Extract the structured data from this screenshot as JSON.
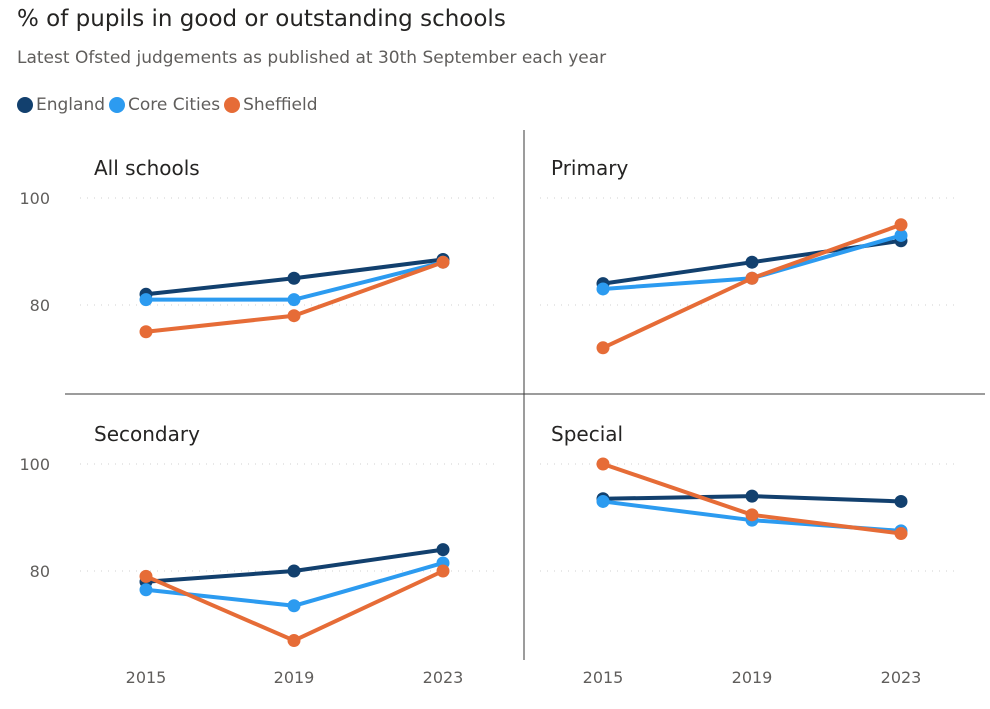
{
  "title": "% of pupils in good or outstanding schools",
  "subtitle": "Latest Ofsted judgements as published at 30th September each year",
  "legend": [
    {
      "name": "England",
      "color": "#12406e"
    },
    {
      "name": "Core Cities",
      "color": "#2c9bf0"
    },
    {
      "name": "Sheffield",
      "color": "#e66c37"
    }
  ],
  "chart_data": {
    "type": "line",
    "layout": "small-multiples-2x2",
    "x": [
      "2015",
      "2019",
      "2023"
    ],
    "ylim": [
      65,
      110
    ],
    "yticks": [
      80,
      100
    ],
    "grid": true,
    "legend_position": "top-left",
    "panels": [
      {
        "title": "All schools",
        "series": [
          {
            "name": "England",
            "values": [
              82,
              85,
              88.5
            ]
          },
          {
            "name": "Core Cities",
            "values": [
              81,
              81,
              88
            ]
          },
          {
            "name": "Sheffield",
            "values": [
              75,
              78,
              88
            ]
          }
        ]
      },
      {
        "title": "Primary",
        "series": [
          {
            "name": "England",
            "values": [
              84,
              88,
              92
            ]
          },
          {
            "name": "Core Cities",
            "values": [
              83,
              85,
              93
            ]
          },
          {
            "name": "Sheffield",
            "values": [
              72,
              85,
              95
            ]
          }
        ]
      },
      {
        "title": "Secondary",
        "series": [
          {
            "name": "England",
            "values": [
              78,
              80,
              84
            ]
          },
          {
            "name": "Core Cities",
            "values": [
              76.5,
              73.5,
              81.5
            ]
          },
          {
            "name": "Sheffield",
            "values": [
              79,
              67,
              80
            ]
          }
        ]
      },
      {
        "title": "Special",
        "series": [
          {
            "name": "England",
            "values": [
              93.5,
              94,
              93
            ]
          },
          {
            "name": "Core Cities",
            "values": [
              93,
              89.5,
              87.5
            ]
          },
          {
            "name": "Sheffield",
            "values": [
              100,
              90.5,
              87
            ]
          }
        ]
      }
    ]
  }
}
